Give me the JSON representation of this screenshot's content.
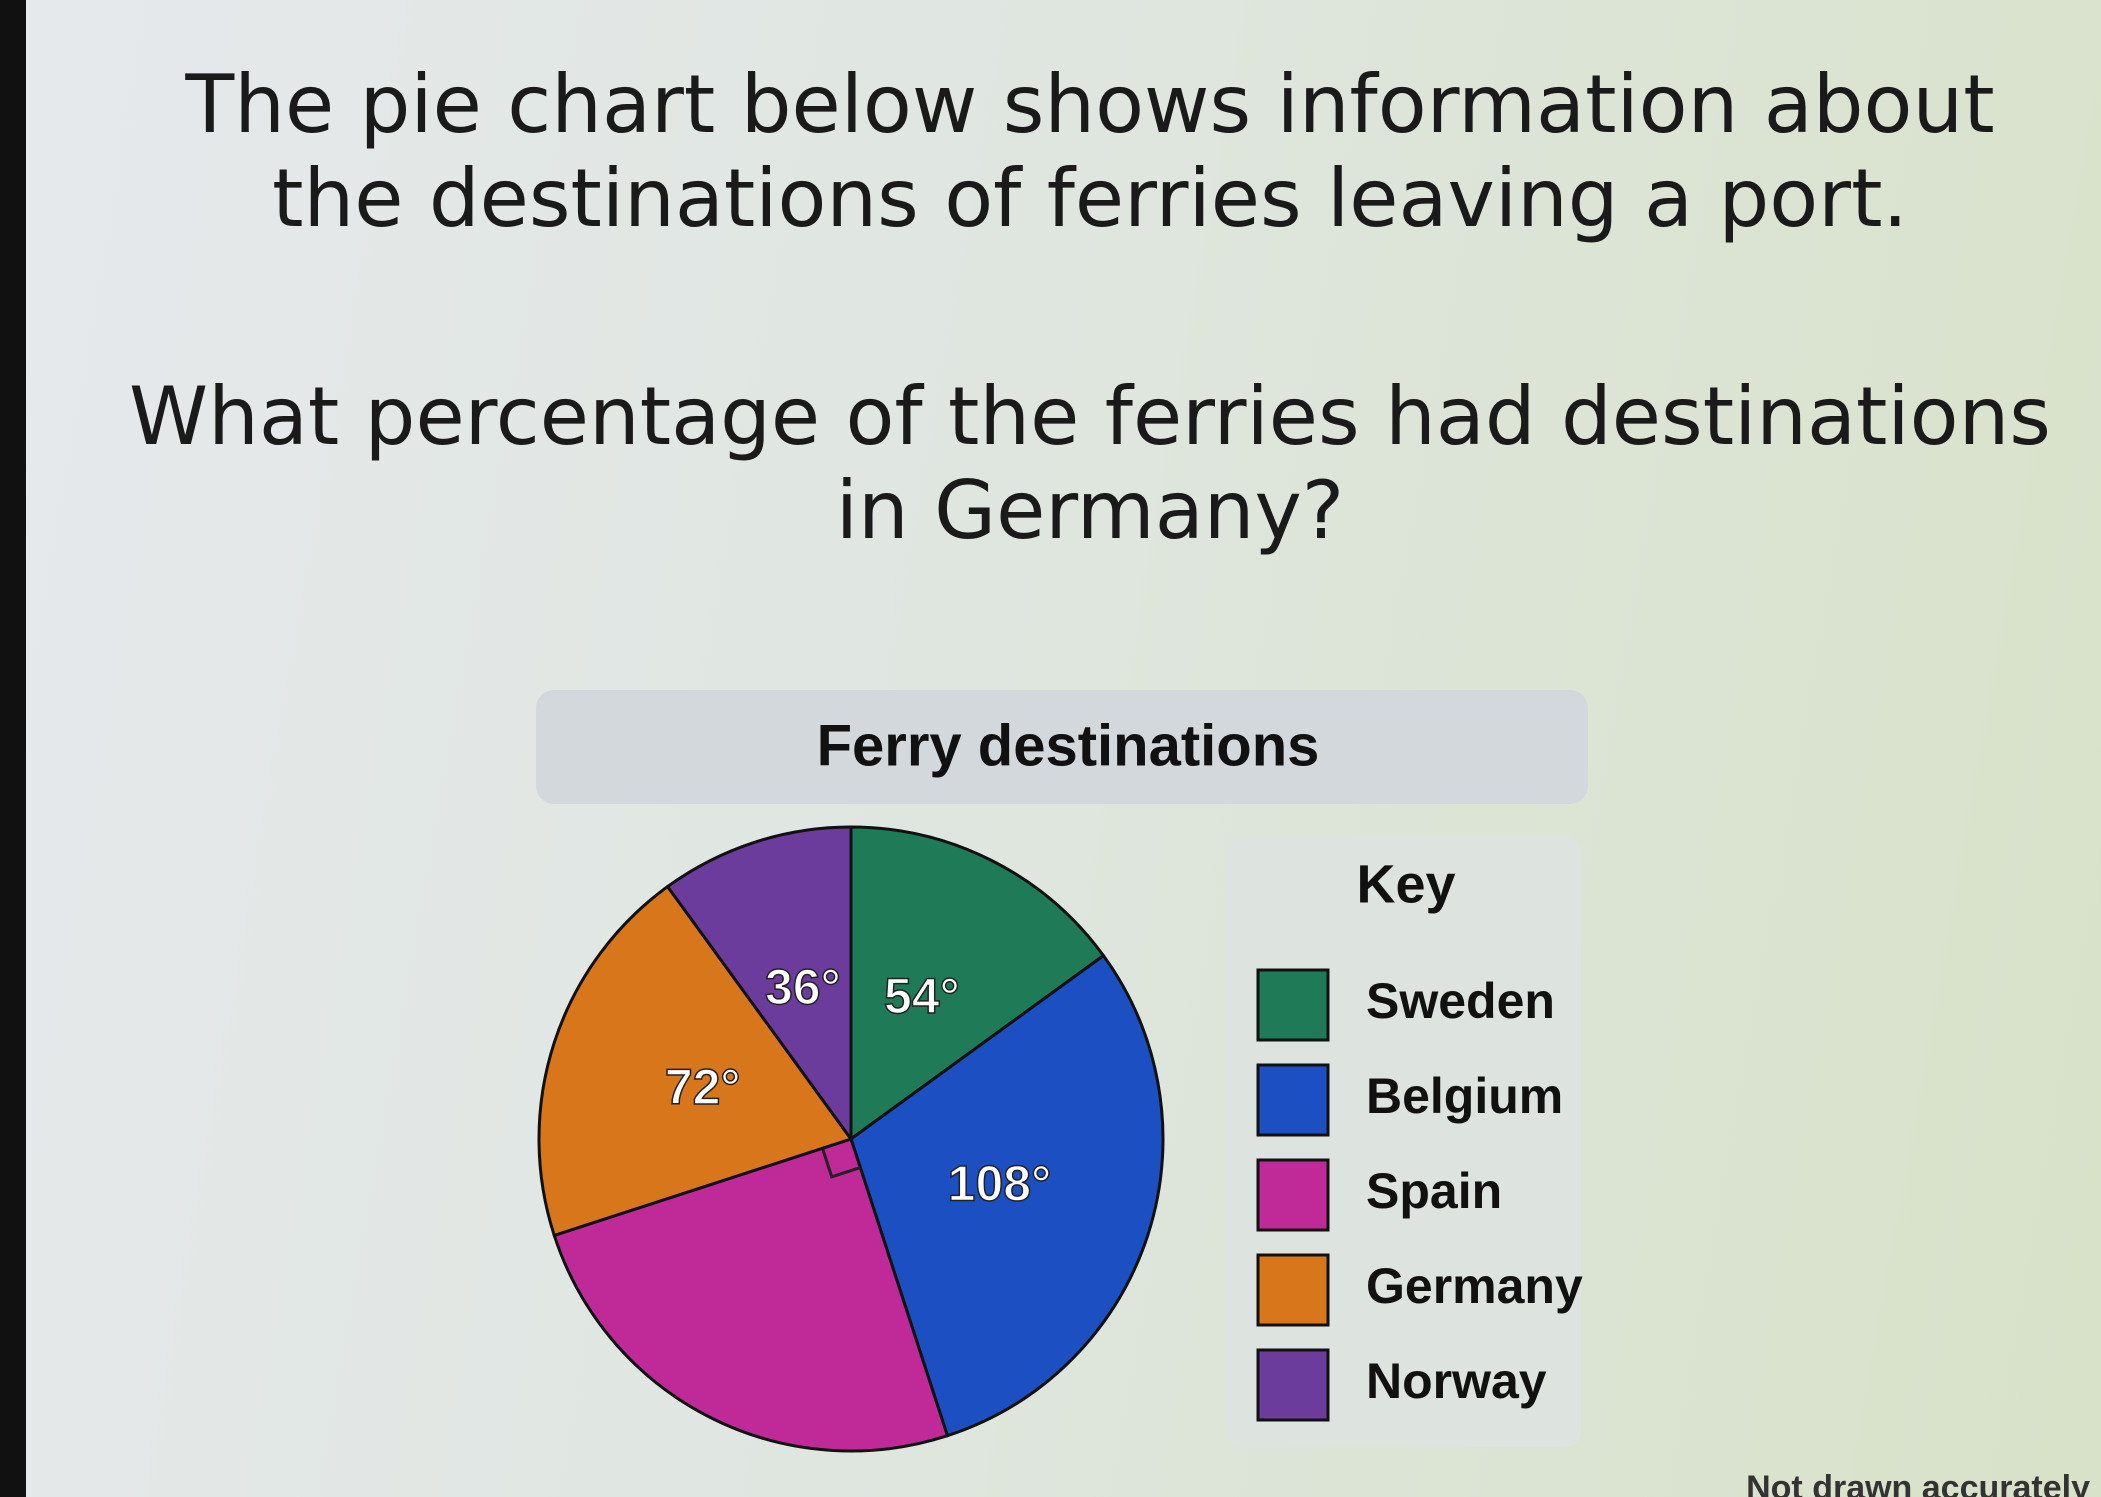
{
  "question": {
    "intro": "The pie chart below shows information about the destinations of ferries leaving a port.",
    "prompt": "What percentage of the ferries had destinations in Germany?"
  },
  "chart_data": {
    "type": "pie",
    "title": "Ferry destinations",
    "categories": [
      "Sweden",
      "Belgium",
      "Spain",
      "Germany",
      "Norway"
    ],
    "values": [
      54,
      108,
      90,
      72,
      36
    ],
    "value_labels": [
      "54°",
      "108°",
      null,
      "72°",
      "36°"
    ],
    "colors": [
      "#1f7a57",
      "#1b4fc2",
      "#bf2a98",
      "#d8761c",
      "#6b3c9c"
    ],
    "legend_title": "Key",
    "note": "Not drawn accurately"
  }
}
